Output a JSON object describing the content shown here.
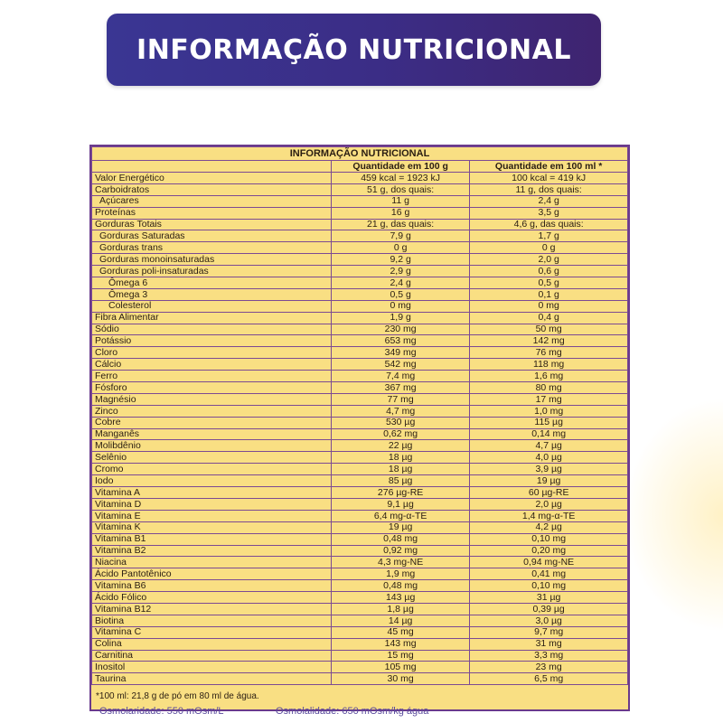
{
  "banner": {
    "title": "INFORMAÇÃO NUTRICIONAL"
  },
  "table": {
    "title": "INFORMAÇÃO NUTRICIONAL",
    "headers": [
      "",
      "Quantidade em 100 g",
      "Quantidade em 100 ml *"
    ],
    "rows": [
      {
        "name": "Valor Energético",
        "per100g": "459 kcal = 1923 kJ",
        "per100ml": "100 kcal = 419 kJ",
        "level": 0
      },
      {
        "name": "Carboidratos",
        "per100g": "51 g, dos quais:",
        "per100ml": "11 g, dos quais:",
        "level": 0
      },
      {
        "name": "Açúcares",
        "per100g": "11 g",
        "per100ml": "2,4 g",
        "level": 1
      },
      {
        "name": "Proteínas",
        "per100g": "16 g",
        "per100ml": "3,5 g",
        "level": 0
      },
      {
        "name": "Gorduras Totais",
        "per100g": "21 g, das quais:",
        "per100ml": "4,6 g, das quais:",
        "level": 0
      },
      {
        "name": "Gorduras Saturadas",
        "per100g": "7,9 g",
        "per100ml": "1,7 g",
        "level": 1
      },
      {
        "name": "Gorduras trans",
        "per100g": "0 g",
        "per100ml": "0 g",
        "level": 1
      },
      {
        "name": "Gorduras monoinsaturadas",
        "per100g": "9,2 g",
        "per100ml": "2,0 g",
        "level": 1
      },
      {
        "name": "Gorduras poli-insaturadas",
        "per100g": "2,9 g",
        "per100ml": "0,6 g",
        "level": 1
      },
      {
        "name": "Ômega 6",
        "per100g": "2,4 g",
        "per100ml": "0,5 g",
        "level": 2
      },
      {
        "name": "Ômega 3",
        "per100g": "0,5 g",
        "per100ml": "0,1 g",
        "level": 2
      },
      {
        "name": "Colesterol",
        "per100g": "0 mg",
        "per100ml": "0 mg",
        "level": 2
      },
      {
        "name": "Fibra Alimentar",
        "per100g": "1,9 g",
        "per100ml": "0,4 g",
        "level": 0
      },
      {
        "name": "Sódio",
        "per100g": "230 mg",
        "per100ml": "50 mg",
        "level": 0
      },
      {
        "name": "Potássio",
        "per100g": "653 mg",
        "per100ml": "142 mg",
        "level": 0
      },
      {
        "name": "Cloro",
        "per100g": "349 mg",
        "per100ml": "76 mg",
        "level": 0
      },
      {
        "name": "Cálcio",
        "per100g": "542 mg",
        "per100ml": "118 mg",
        "level": 0
      },
      {
        "name": "Ferro",
        "per100g": "7,4 mg",
        "per100ml": "1,6 mg",
        "level": 0
      },
      {
        "name": "Fósforo",
        "per100g": "367 mg",
        "per100ml": "80 mg",
        "level": 0
      },
      {
        "name": "Magnésio",
        "per100g": "77 mg",
        "per100ml": "17 mg",
        "level": 0
      },
      {
        "name": "Zinco",
        "per100g": "4,7 mg",
        "per100ml": "1,0 mg",
        "level": 0
      },
      {
        "name": "Cobre",
        "per100g": "530 µg",
        "per100ml": "115 µg",
        "level": 0
      },
      {
        "name": "Manganês",
        "per100g": "0,62 mg",
        "per100ml": "0,14 mg",
        "level": 0
      },
      {
        "name": "Molibdênio",
        "per100g": "22 µg",
        "per100ml": "4,7 µg",
        "level": 0
      },
      {
        "name": "Selênio",
        "per100g": "18 µg",
        "per100ml": "4,0 µg",
        "level": 0
      },
      {
        "name": "Cromo",
        "per100g": "18 µg",
        "per100ml": "3,9 µg",
        "level": 0
      },
      {
        "name": "Iodo",
        "per100g": "85 µg",
        "per100ml": "19 µg",
        "level": 0
      },
      {
        "name": "Vitamina A",
        "per100g": "276 µg-RE",
        "per100ml": "60 µg-RE",
        "level": 0
      },
      {
        "name": "Vitamina D",
        "per100g": "9,1 µg",
        "per100ml": "2,0 µg",
        "level": 0
      },
      {
        "name": "Vitamina E",
        "per100g": "6,4 mg-α-TE",
        "per100ml": "1,4 mg-α-TE",
        "level": 0
      },
      {
        "name": "Vitamina K",
        "per100g": "19 µg",
        "per100ml": "4,2 µg",
        "level": 0
      },
      {
        "name": "Vitamina B1",
        "per100g": "0,48 mg",
        "per100ml": "0,10 mg",
        "level": 0
      },
      {
        "name": "Vitamina B2",
        "per100g": "0,92 mg",
        "per100ml": "0,20 mg",
        "level": 0
      },
      {
        "name": "Niacina",
        "per100g": "4,3 mg-NE",
        "per100ml": "0,94 mg-NE",
        "level": 0
      },
      {
        "name": "Ácido Pantotênico",
        "per100g": "1,9 mg",
        "per100ml": "0,41 mg",
        "level": 0
      },
      {
        "name": "Vitamina B6",
        "per100g": "0,48 mg",
        "per100ml": "0,10 mg",
        "level": 0
      },
      {
        "name": "Ácido Fólico",
        "per100g": "143 µg",
        "per100ml": "31 µg",
        "level": 0
      },
      {
        "name": "Vitamina B12",
        "per100g": "1,8 µg",
        "per100ml": "0,39 µg",
        "level": 0
      },
      {
        "name": "Biotina",
        "per100g": "14 µg",
        "per100ml": "3,0 µg",
        "level": 0
      },
      {
        "name": "Vitamina C",
        "per100g": "45 mg",
        "per100ml": "9,7 mg",
        "level": 0
      },
      {
        "name": "Colina",
        "per100g": "143 mg",
        "per100ml": "31 mg",
        "level": 0
      },
      {
        "name": "Carnitina",
        "per100g": "15 mg",
        "per100ml": "3,3 mg",
        "level": 0
      },
      {
        "name": "Inositol",
        "per100g": "105 mg",
        "per100ml": "23 mg",
        "level": 0
      },
      {
        "name": "Taurina",
        "per100g": "30 mg",
        "per100ml": "6,5 mg",
        "level": 0
      }
    ],
    "footnote": "*100 ml: 21,8 g de pó em 80 ml de água."
  },
  "osmolarity": "Osmolaridade: 550 mOsm/L",
  "osmolality": "Osmolalidade: 650 mOsm/kg água",
  "colors": {
    "banner_start": "#3a3693",
    "banner_end": "#3f2470",
    "panel": "#f9df83",
    "border": "#7c4a93",
    "osm_text": "#5a4a9c"
  }
}
